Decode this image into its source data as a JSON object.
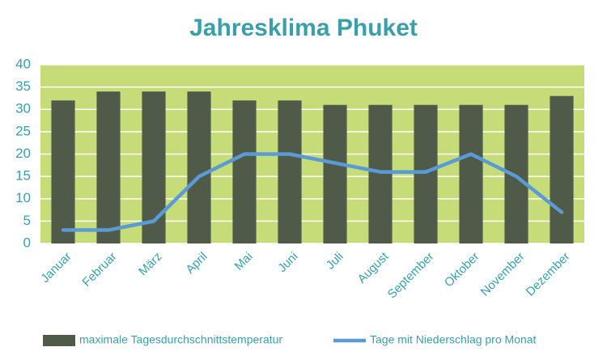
{
  "chart_data": {
    "type": "bar-line",
    "title": "Jahresklima Phuket",
    "categories": [
      "Januar",
      "Februar",
      "März",
      "April",
      "Mai",
      "Juni",
      "Juli",
      "August",
      "September",
      "Oktober",
      "November",
      "Dezember"
    ],
    "series": [
      {
        "name": "maximale Tagesdurchschnittstemperatur",
        "type": "bar",
        "color": "#4f5a48",
        "values": [
          32,
          34,
          34,
          34,
          32,
          32,
          31,
          31,
          31,
          31,
          31,
          33
        ]
      },
      {
        "name": "Tage mit Niederschlag pro Monat",
        "type": "line",
        "color": "#5b9bd5",
        "values": [
          3,
          3,
          5,
          15,
          20,
          20,
          18,
          16,
          16,
          20,
          15,
          7
        ]
      }
    ],
    "ylim": [
      0,
      40
    ],
    "yticks": [
      0,
      5,
      10,
      15,
      20,
      25,
      30,
      35,
      40
    ],
    "grid": true
  }
}
